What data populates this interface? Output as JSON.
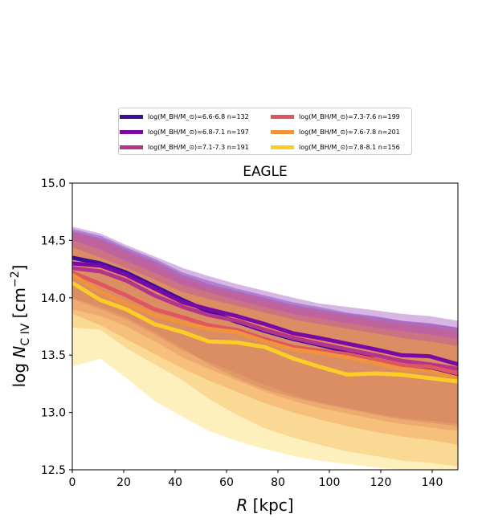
{
  "chart_data": {
    "type": "area",
    "title": "EAGLE",
    "xlabel": "R [kpc]",
    "ylabel": "log N_C IV [cm^-2]",
    "xlim": [
      0,
      150
    ],
    "ylim": [
      12.5,
      15.0
    ],
    "xticks": [
      0,
      20,
      40,
      60,
      80,
      100,
      120,
      140
    ],
    "yticks": [
      12.5,
      13.0,
      13.5,
      14.0,
      14.5,
      15.0
    ],
    "legend_placement": "above plot, two columns",
    "x": [
      0,
      11,
      21,
      32,
      43,
      53,
      64,
      75,
      86,
      96,
      107,
      118,
      128,
      139,
      150
    ],
    "series": [
      {
        "name": "log(M_BH/M_⊙)=6.6-6.8 n=132",
        "color": "#3b0f9e",
        "values": [
          14.35,
          14.3,
          14.22,
          14.1,
          13.98,
          13.88,
          13.79,
          13.71,
          13.64,
          13.59,
          13.53,
          13.46,
          13.41,
          13.37,
          13.32
        ],
        "upper": [
          14.6,
          14.54,
          14.44,
          14.34,
          14.22,
          14.15,
          14.08,
          14.02,
          13.96,
          13.92,
          13.87,
          13.84,
          13.8,
          13.78,
          13.74
        ],
        "lower": [
          14.0,
          13.92,
          13.83,
          13.7,
          13.56,
          13.42,
          13.3,
          13.2,
          13.13,
          13.08,
          13.03,
          12.98,
          12.94,
          12.91,
          12.88
        ]
      },
      {
        "name": "log(M_BH/M_⊙)=6.8-7.1 n=197",
        "color": "#7b0aa5",
        "values": [
          14.3,
          14.28,
          14.2,
          14.08,
          13.96,
          13.9,
          13.84,
          13.77,
          13.69,
          13.65,
          13.6,
          13.55,
          13.5,
          13.49,
          13.42
        ],
        "upper": [
          14.62,
          14.56,
          14.46,
          14.36,
          14.26,
          14.19,
          14.12,
          14.06,
          14.0,
          13.95,
          13.92,
          13.89,
          13.86,
          13.84,
          13.8
        ],
        "lower": [
          13.99,
          13.9,
          13.81,
          13.68,
          13.54,
          13.44,
          13.34,
          13.24,
          13.15,
          13.09,
          13.04,
          12.99,
          12.95,
          12.93,
          12.9
        ]
      },
      {
        "name": "log(M_BH/M_⊙)=7.1-7.3 n=191",
        "color": "#b5338b",
        "values": [
          14.26,
          14.23,
          14.15,
          14.02,
          13.92,
          13.85,
          13.8,
          13.72,
          13.65,
          13.6,
          13.55,
          13.5,
          13.45,
          13.42,
          13.38
        ],
        "upper": [
          14.58,
          14.52,
          14.42,
          14.32,
          14.2,
          14.12,
          14.06,
          14.0,
          13.94,
          13.9,
          13.86,
          13.83,
          13.8,
          13.77,
          13.74
        ],
        "lower": [
          13.9,
          13.84,
          13.75,
          13.62,
          13.48,
          13.38,
          13.28,
          13.18,
          13.1,
          13.04,
          12.99,
          12.94,
          12.9,
          12.87,
          12.84
        ]
      },
      {
        "name": "log(M_BH/M_⊙)=7.3-7.6 n=199",
        "color": "#e0565e",
        "values": [
          14.22,
          14.12,
          14.02,
          13.9,
          13.83,
          13.76,
          13.72,
          13.64,
          13.57,
          13.54,
          13.51,
          13.46,
          13.41,
          13.4,
          13.34
        ],
        "upper": [
          14.57,
          14.5,
          14.4,
          14.29,
          14.17,
          14.1,
          14.04,
          13.98,
          13.92,
          13.88,
          13.84,
          13.8,
          13.77,
          13.74,
          13.7
        ],
        "lower": [
          13.86,
          13.76,
          13.64,
          13.51,
          13.38,
          13.28,
          13.18,
          13.08,
          13.0,
          12.94,
          12.88,
          12.83,
          12.79,
          12.76,
          12.72
        ]
      },
      {
        "name": "log(M_BH/M_⊙)=7.6-7.8 n=201",
        "color": "#f0943c",
        "values": [
          14.2,
          14.05,
          13.95,
          13.85,
          13.78,
          13.73,
          13.7,
          13.62,
          13.55,
          13.52,
          13.48,
          13.43,
          13.38,
          13.36,
          13.3
        ],
        "upper": [
          14.5,
          14.42,
          14.32,
          14.22,
          14.11,
          14.05,
          13.98,
          13.92,
          13.86,
          13.82,
          13.78,
          13.74,
          13.71,
          13.68,
          13.64
        ],
        "lower": [
          13.74,
          13.72,
          13.56,
          13.42,
          13.28,
          13.12,
          12.98,
          12.86,
          12.78,
          12.72,
          12.66,
          12.62,
          12.58,
          12.56,
          12.53
        ]
      },
      {
        "name": "log(M_BH/M_⊙)=7.8-8.1 n=156",
        "color": "#fcce25",
        "values": [
          14.13,
          13.98,
          13.9,
          13.77,
          13.7,
          13.62,
          13.61,
          13.57,
          13.47,
          13.4,
          13.33,
          13.34,
          13.33,
          13.3,
          13.27
        ],
        "upper": [
          14.44,
          14.35,
          14.26,
          14.16,
          14.05,
          13.99,
          13.93,
          13.87,
          13.81,
          13.77,
          13.73,
          13.69,
          13.65,
          13.62,
          13.58
        ],
        "lower": [
          13.4,
          13.47,
          13.3,
          13.1,
          12.96,
          12.84,
          12.75,
          12.68,
          12.62,
          12.58,
          12.55,
          12.52,
          12.5,
          12.5,
          12.5
        ]
      }
    ]
  }
}
